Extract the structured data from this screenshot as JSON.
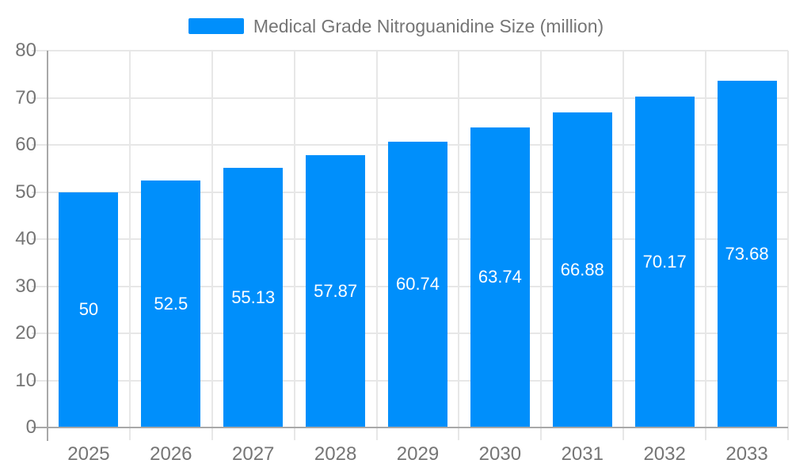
{
  "chart_data": {
    "type": "bar",
    "title": "Medical Grade Nitroguanidine Size (million)",
    "categories": [
      "2025",
      "2026",
      "2027",
      "2028",
      "2029",
      "2030",
      "2031",
      "2032",
      "2033"
    ],
    "values": [
      50,
      52.5,
      55.13,
      57.87,
      60.74,
      63.74,
      66.88,
      70.17,
      73.68
    ],
    "value_labels": [
      "50",
      "52.5",
      "55.13",
      "57.87",
      "60.74",
      "63.74",
      "66.88",
      "70.17",
      "73.68"
    ],
    "ylim": [
      0,
      80
    ],
    "ytick_step": 10,
    "ytick_labels": [
      "0",
      "10",
      "20",
      "30",
      "40",
      "50",
      "60",
      "70",
      "80"
    ],
    "grid": true,
    "legend_position": "top",
    "colors": {
      "bar": "#008FFB",
      "data_label": "#ffffff",
      "axis_text": "#757575",
      "grid_line": "#e7e7e7",
      "axis_line": "#a8a8a8"
    }
  }
}
